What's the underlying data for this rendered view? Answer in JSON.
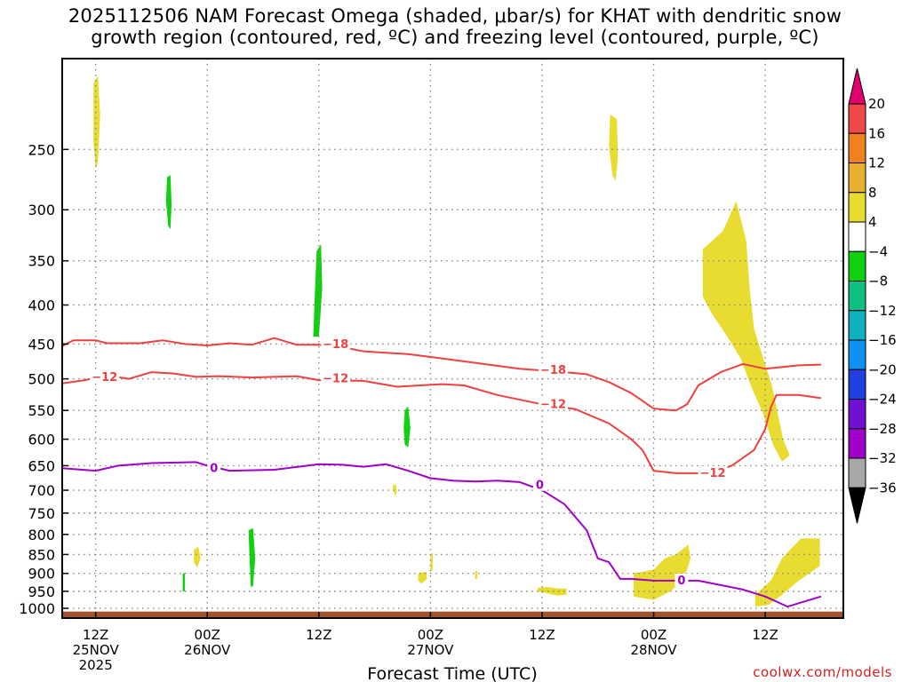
{
  "title": {
    "line1": "2025112506 NAM Forecast Omega (shaded, μbar/s) for KHAT with dendritic snow",
    "line2": "growth region (contoured, red, ºC) and freezing level (contoured, purple, ºC)"
  },
  "credit": "coolwx.com/models",
  "colors": {
    "dgz_contour": "#f04040",
    "freezing_contour": "#a000c8",
    "ground": "#a0522d",
    "gridline": "#888888"
  },
  "chart_data": {
    "type": "heatmap",
    "xlabel": "Forecast Time (UTC)",
    "ylabel": "",
    "x_range_hours": [
      -3,
      67
    ],
    "y_range_hpa": [
      1030,
      190
    ],
    "x_ticks": [
      {
        "hour": 0,
        "lines": [
          "12Z",
          "25NOV",
          "2025"
        ]
      },
      {
        "hour": 10,
        "lines": [
          "00Z",
          "26NOV"
        ]
      },
      {
        "hour": 20,
        "lines": [
          "12Z",
          ""
        ]
      },
      {
        "hour": 30,
        "lines": [
          "00Z",
          "27NOV"
        ]
      },
      {
        "hour": 40,
        "lines": [
          "12Z",
          ""
        ]
      },
      {
        "hour": 50,
        "lines": [
          "00Z",
          "28NOV"
        ]
      },
      {
        "hour": 60,
        "lines": [
          "12Z",
          ""
        ]
      }
    ],
    "y_ticks": [
      250,
      300,
      350,
      400,
      450,
      500,
      550,
      600,
      650,
      700,
      750,
      800,
      850,
      900,
      950,
      1000
    ],
    "y_tick_labels": [
      "250",
      "300",
      "350",
      "400",
      "450",
      "500",
      "550",
      "600",
      "650",
      "700",
      "750",
      "800",
      "850",
      "900",
      "950",
      "1000"
    ],
    "colorbar": {
      "levels": [
        "20",
        "16",
        "12",
        "8",
        "4",
        "−4",
        "−8",
        "−12",
        "−16",
        "−20",
        "−24",
        "−28",
        "−32",
        "−36"
      ],
      "colors": [
        "#e0006e",
        "#f04848",
        "#f08020",
        "#e8b030",
        "#e8dc30",
        "#ffffff",
        "#10d010",
        "#10c080",
        "#10b0c0",
        "#1090f0",
        "#2040e0",
        "#7010d0",
        "#a000c8",
        "#a8a8a8",
        "#000000"
      ]
    },
    "omega_regions": [
      {
        "value": 5,
        "color": "#e8dc30",
        "points": [
          [
            -0.2,
            205
          ],
          [
            0.2,
            200
          ],
          [
            0.4,
            225
          ],
          [
            0.2,
            260
          ],
          [
            0,
            265
          ],
          [
            -0.2,
            245
          ]
        ]
      },
      {
        "value": -5,
        "color": "#10d010",
        "points": [
          [
            6.4,
            272
          ],
          [
            6.7,
            270
          ],
          [
            6.8,
            295
          ],
          [
            6.7,
            318
          ],
          [
            6.5,
            315
          ],
          [
            6.3,
            292
          ]
        ]
      },
      {
        "value": -5,
        "color": "#10d010",
        "points": [
          [
            19.8,
            340
          ],
          [
            20.2,
            333
          ],
          [
            20.3,
            380
          ],
          [
            20.1,
            420
          ],
          [
            20,
            440
          ],
          [
            19.5,
            440
          ],
          [
            19.6,
            400
          ]
        ]
      },
      {
        "value": 5,
        "color": "#e8dc30",
        "points": [
          [
            46.1,
            225
          ],
          [
            46.7,
            228
          ],
          [
            46.8,
            255
          ],
          [
            46.6,
            275
          ],
          [
            46.3,
            270
          ],
          [
            46.0,
            248
          ]
        ]
      },
      {
        "value": 5,
        "color": "#e8dc30",
        "points": [
          [
            54.4,
            338
          ],
          [
            55.2,
            330
          ],
          [
            56.2,
            320
          ],
          [
            57.4,
            292
          ],
          [
            58.3,
            330
          ],
          [
            58.6,
            380
          ],
          [
            59.0,
            430
          ],
          [
            60.6,
            510
          ],
          [
            61.6,
            600
          ],
          [
            62.2,
            630
          ],
          [
            61.5,
            642
          ],
          [
            60.7,
            610
          ],
          [
            59.8,
            555
          ],
          [
            58.7,
            510
          ],
          [
            57.8,
            470
          ],
          [
            56.6,
            440
          ],
          [
            55.2,
            410
          ],
          [
            54.4,
            390
          ]
        ]
      },
      {
        "value": -5,
        "color": "#10d010",
        "points": [
          [
            27.7,
            550
          ],
          [
            28.0,
            543
          ],
          [
            28.2,
            580
          ],
          [
            28.0,
            615
          ],
          [
            27.7,
            610
          ],
          [
            27.6,
            580
          ]
        ]
      },
      {
        "value": 5,
        "color": "#e8dc30",
        "points": [
          [
            26.6,
            690
          ],
          [
            26.9,
            688
          ],
          [
            27.0,
            705
          ],
          [
            26.8,
            712
          ]
        ]
      },
      {
        "value": 5,
        "color": "#e8dc30",
        "points": [
          [
            8.8,
            838
          ],
          [
            9.2,
            830
          ],
          [
            9.4,
            860
          ],
          [
            9.1,
            885
          ],
          [
            8.8,
            870
          ]
        ]
      },
      {
        "value": -5,
        "color": "#10d010",
        "points": [
          [
            13.7,
            790
          ],
          [
            14.1,
            785
          ],
          [
            14.3,
            860
          ],
          [
            14.1,
            935
          ],
          [
            13.9,
            938
          ],
          [
            13.8,
            870
          ]
        ]
      },
      {
        "value": -5,
        "color": "#10d010",
        "points": [
          [
            7.8,
            900
          ],
          [
            8.0,
            900
          ],
          [
            8.0,
            950
          ],
          [
            7.8,
            950
          ]
        ]
      },
      {
        "value": 5,
        "color": "#e8dc30",
        "points": [
          [
            28.9,
            900
          ],
          [
            29.6,
            895
          ],
          [
            29.7,
            915
          ],
          [
            29.2,
            928
          ],
          [
            28.9,
            920
          ]
        ]
      },
      {
        "value": 5,
        "color": "#e8dc30",
        "points": [
          [
            30.0,
            850
          ],
          [
            30.2,
            845
          ],
          [
            30.2,
            890
          ],
          [
            30.0,
            895
          ]
        ]
      },
      {
        "value": 5,
        "color": "#e8dc30",
        "points": [
          [
            34.0,
            895
          ],
          [
            34.2,
            893
          ],
          [
            34.2,
            915
          ],
          [
            34.0,
            915
          ]
        ]
      },
      {
        "value": 5,
        "color": "#e8dc30",
        "points": [
          [
            39.6,
            940
          ],
          [
            40.5,
            938
          ],
          [
            41.5,
            942
          ],
          [
            42.2,
            942
          ],
          [
            42.2,
            960
          ],
          [
            41.3,
            962
          ],
          [
            40.3,
            955
          ],
          [
            39.6,
            950
          ]
        ]
      },
      {
        "value": 5,
        "color": "#e8dc30",
        "points": [
          [
            48.2,
            900
          ],
          [
            50.0,
            890
          ],
          [
            51.0,
            860
          ],
          [
            52.0,
            850
          ],
          [
            52.9,
            830
          ],
          [
            53.1,
            825
          ],
          [
            53.3,
            860
          ],
          [
            53.0,
            890
          ],
          [
            52.5,
            920
          ],
          [
            51.5,
            950
          ],
          [
            50.0,
            975
          ],
          [
            48.2,
            965
          ]
        ]
      },
      {
        "value": 5,
        "color": "#e8dc30",
        "points": [
          [
            59.1,
            960
          ],
          [
            60.5,
            920
          ],
          [
            61.5,
            860
          ],
          [
            62.5,
            830
          ],
          [
            63.2,
            810
          ],
          [
            64.9,
            810
          ],
          [
            64.9,
            880
          ],
          [
            63.0,
            920
          ],
          [
            61.5,
            960
          ],
          [
            60.3,
            990
          ],
          [
            59.1,
            995
          ]
        ]
      }
    ],
    "contours": [
      {
        "level": -18,
        "color": "#f04040",
        "points": [
          [
            -3,
            453
          ],
          [
            -2,
            445
          ],
          [
            0,
            445
          ],
          [
            1,
            449
          ],
          [
            4,
            449
          ],
          [
            6,
            445
          ],
          [
            8,
            450
          ],
          [
            10,
            452
          ],
          [
            12,
            449
          ],
          [
            14,
            451
          ],
          [
            16,
            442
          ],
          [
            18,
            451
          ],
          [
            20,
            451
          ],
          [
            22,
            454
          ],
          [
            24,
            460
          ],
          [
            26,
            462
          ],
          [
            28,
            464
          ],
          [
            32,
            472
          ],
          [
            38,
            485
          ],
          [
            42,
            490
          ],
          [
            44,
            493
          ],
          [
            46,
            505
          ],
          [
            48,
            522
          ],
          [
            50,
            547
          ],
          [
            52,
            550
          ],
          [
            53,
            540
          ],
          [
            54,
            510
          ],
          [
            56,
            490
          ],
          [
            58,
            478
          ],
          [
            60,
            485
          ],
          [
            63,
            480
          ],
          [
            65,
            479
          ]
        ]
      },
      {
        "level": -12,
        "color": "#f04040",
        "points": [
          [
            -3,
            507
          ],
          [
            -1,
            502
          ],
          [
            1,
            495
          ],
          [
            3,
            500
          ],
          [
            5,
            490
          ],
          [
            7,
            492
          ],
          [
            9,
            497
          ],
          [
            11,
            496
          ],
          [
            14,
            498
          ],
          [
            18,
            496
          ],
          [
            20,
            502
          ],
          [
            24,
            503
          ],
          [
            27,
            512
          ],
          [
            31,
            508
          ],
          [
            33,
            510
          ],
          [
            36,
            525
          ],
          [
            40,
            540
          ],
          [
            43,
            548
          ],
          [
            46,
            572
          ],
          [
            48,
            600
          ],
          [
            49,
            620
          ],
          [
            50,
            660
          ],
          [
            52,
            665
          ],
          [
            55,
            665
          ],
          [
            57,
            650
          ],
          [
            59,
            620
          ],
          [
            60,
            582
          ],
          [
            60.5,
            545
          ],
          [
            61,
            525
          ],
          [
            63,
            525
          ],
          [
            65,
            530
          ]
        ]
      },
      {
        "level": 0,
        "color": "#a000c8",
        "points": [
          [
            -3,
            655
          ],
          [
            0,
            660
          ],
          [
            2,
            650
          ],
          [
            5,
            645
          ],
          [
            9,
            643
          ],
          [
            10,
            650
          ],
          [
            12,
            660
          ],
          [
            16,
            658
          ],
          [
            20,
            647
          ],
          [
            22,
            648
          ],
          [
            24,
            652
          ],
          [
            26,
            647
          ],
          [
            28,
            660
          ],
          [
            30,
            675
          ],
          [
            32,
            680
          ],
          [
            34,
            682
          ],
          [
            36,
            680
          ],
          [
            38,
            683
          ],
          [
            40,
            700
          ],
          [
            42,
            730
          ],
          [
            44,
            790
          ],
          [
            45,
            860
          ],
          [
            46,
            870
          ],
          [
            47,
            915
          ],
          [
            48,
            915
          ],
          [
            50,
            920
          ],
          [
            52,
            920
          ],
          [
            54,
            920
          ],
          [
            58,
            945
          ],
          [
            60,
            965
          ],
          [
            62,
            995
          ],
          [
            65,
            965
          ]
        ]
      }
    ],
    "contour_labels": [
      {
        "text": "−18",
        "x_hour": 21.5,
        "p": 451,
        "color": "#f04040"
      },
      {
        "text": "−18",
        "x_hour": 41.0,
        "p": 487,
        "color": "#f04040"
      },
      {
        "text": "−12",
        "x_hour": 0.8,
        "p": 498,
        "color": "#f04040"
      },
      {
        "text": "−12",
        "x_hour": 21.5,
        "p": 500,
        "color": "#f04040"
      },
      {
        "text": "−12",
        "x_hour": 41.0,
        "p": 540,
        "color": "#f04040"
      },
      {
        "text": "−12",
        "x_hour": 55.3,
        "p": 665,
        "color": "#f04040"
      },
      {
        "text": "0",
        "x_hour": 10.6,
        "p": 655,
        "color": "#a000c8"
      },
      {
        "text": "0",
        "x_hour": 39.8,
        "p": 690,
        "color": "#a000c8"
      },
      {
        "text": "0",
        "x_hour": 52.5,
        "p": 920,
        "color": "#a000c8"
      }
    ],
    "ground": {
      "surface_pressure_hpa": 1010,
      "color": "#a0522d"
    }
  }
}
